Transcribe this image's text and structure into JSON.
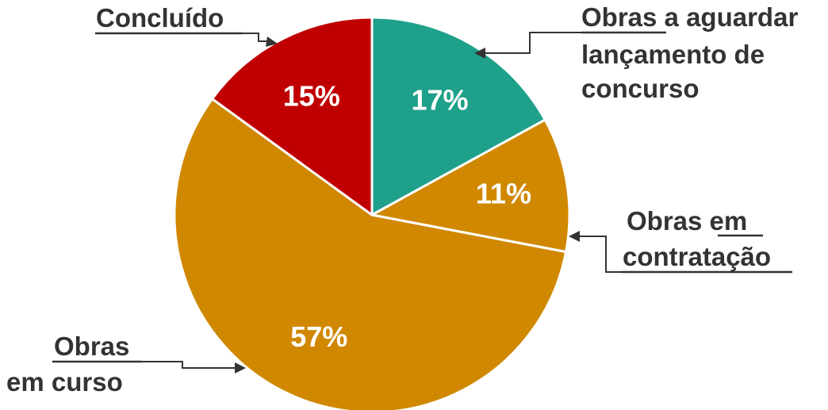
{
  "chart_data": {
    "type": "pie",
    "start_angle_deg": 0,
    "direction": "clockwise",
    "slices": [
      {
        "label": "Obras a aguardar lançamento de concurso",
        "value": 17,
        "value_label": "17%",
        "color": "#1FA08A"
      },
      {
        "label": "Obras em contratação",
        "value": 11,
        "value_label": "11%",
        "color": "#D08800"
      },
      {
        "label": "Obras em curso",
        "value": 57,
        "value_label": "57%",
        "color": "#D08800"
      },
      {
        "label": "Concluído",
        "value": 15,
        "value_label": "15%",
        "color": "#C00000"
      }
    ],
    "callouts": {
      "aguardar": {
        "line1_underlined": "Obras",
        "line1_rest": " a aguardar",
        "line2": "lançamento de",
        "line3": "concurso"
      },
      "contratacao": {
        "line1_plain": "Obras ",
        "line1_underlined": "em",
        "line2_underlined": "contratação"
      },
      "curso": {
        "line1_underlined": "Obras",
        "line2": "em curso"
      },
      "concluido": {
        "line1_underlined": "Concluído"
      }
    },
    "slice_border_color": "#ffffff",
    "text_color": "#333333"
  }
}
